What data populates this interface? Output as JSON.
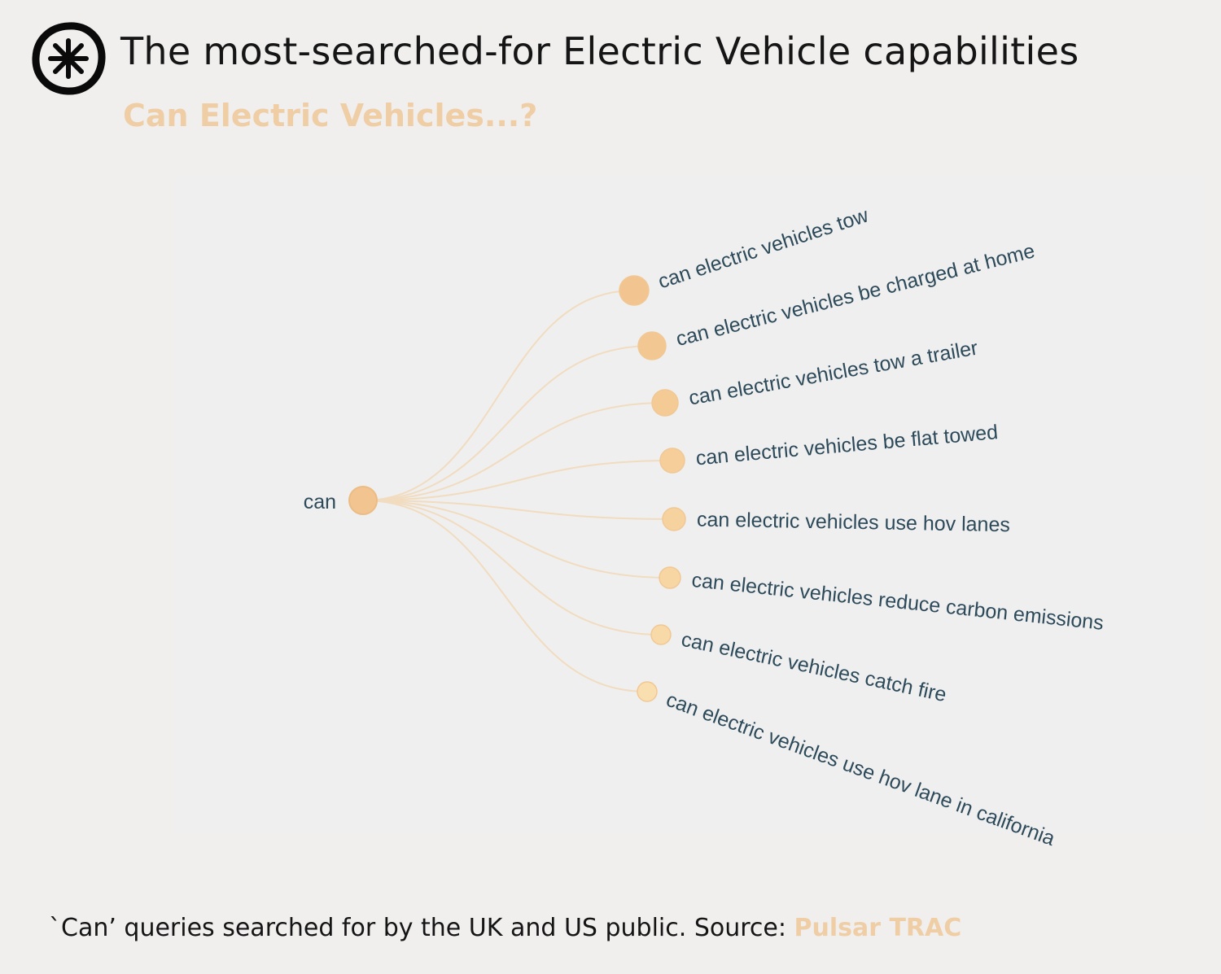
{
  "header": {
    "title": "The most-searched-for Electric Vehicle capabilities",
    "subtitle": "Can Electric Vehicles...?"
  },
  "tree": {
    "root": "can",
    "children": [
      "can electric vehicles tow",
      "can electric vehicles be charged at home",
      "can electric vehicles tow a trailer",
      "can electric vehicles be flat towed",
      "can electric vehicles use hov lanes",
      "can electric vehicles reduce carbon emissions",
      "can electric vehicles catch fire",
      "can electric vehicles use hov lane in california"
    ]
  },
  "footer": {
    "caption": "`Can’ queries searched for by the UK and US public. Source: ",
    "source": "Pulsar TRAC"
  },
  "colors": {
    "accent": "#efcea6",
    "label": "#2d4a5a",
    "node": "#f4c98f",
    "link": "#f1dcc0"
  }
}
